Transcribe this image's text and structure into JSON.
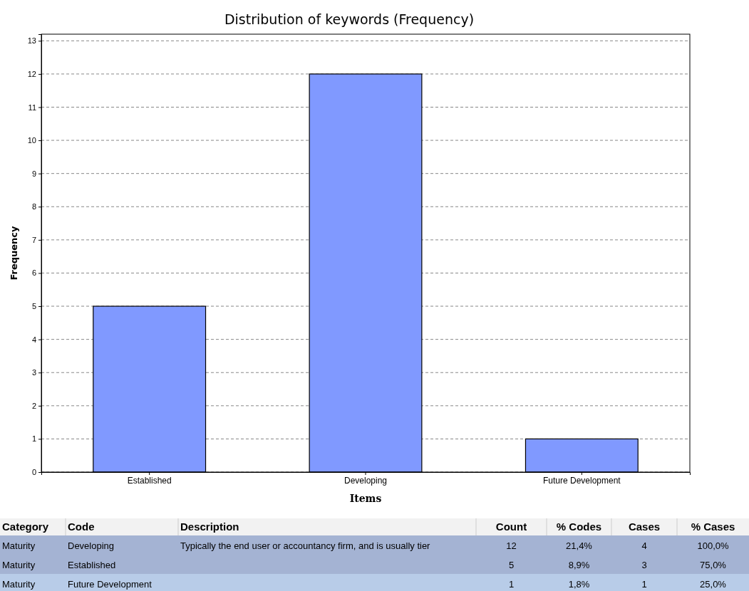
{
  "chart_data": {
    "type": "bar",
    "title": "Distribution of keywords (Frequency)",
    "xlabel": "Items",
    "ylabel": "Frequency",
    "categories": [
      "Established",
      "Developing",
      "Future Development"
    ],
    "values": [
      5,
      12,
      1
    ],
    "color": "#8099ff",
    "ylim": [
      0,
      13.2
    ],
    "yticks": [
      0,
      1,
      2,
      3,
      4,
      5,
      6,
      7,
      8,
      9,
      10,
      11,
      12,
      13
    ],
    "grid": "y",
    "line_style": "dashed",
    "annotations": [
      "Category",
      "Code",
      "Description",
      "Count",
      "% Codes",
      "Cases",
      "% Cases",
      "Maturity",
      "Developing",
      "Typically the end user or accountancy firm, and is usually tier",
      "12",
      "21,4%",
      "4",
      "100,0%",
      "Maturity",
      "Established",
      "5",
      "8,9%",
      "3",
      "75,0%",
      "Maturity",
      "Future Development",
      "1",
      "1,8%",
      "1",
      "25,0%"
    ]
  }
}
